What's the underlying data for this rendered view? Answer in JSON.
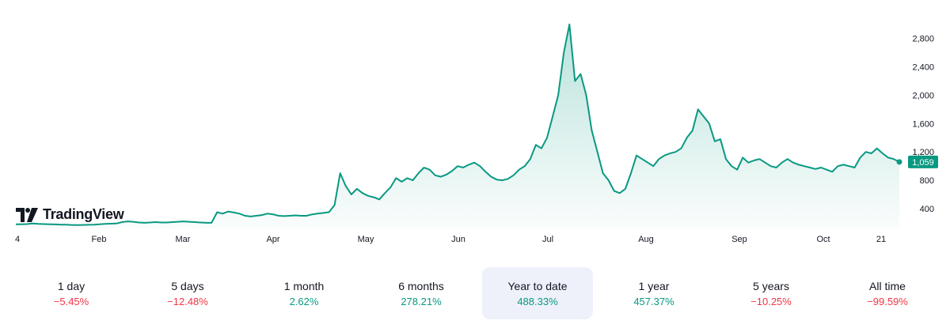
{
  "chart_data": {
    "type": "area",
    "title": "",
    "xlabel": "",
    "ylabel": "",
    "x_ticks": [
      "4",
      "Feb",
      "Mar",
      "Apr",
      "May",
      "Jun",
      "Jul",
      "Aug",
      "Sep",
      "Oct",
      "21"
    ],
    "y_ticks": [
      "400",
      "800",
      "1,200",
      "1,600",
      "2,000",
      "2,400",
      "2,800"
    ],
    "ylim": [
      110,
      3120
    ],
    "grid": false,
    "legend": "none",
    "last_price_label": "1,059",
    "series": [
      {
        "values": [
          180,
          180,
          182,
          190,
          185,
          183,
          180,
          178,
          175,
          173,
          170,
          168,
          170,
          172,
          175,
          180,
          185,
          188,
          190,
          210,
          220,
          215,
          205,
          200,
          205,
          210,
          205,
          205,
          210,
          215,
          220,
          215,
          210,
          205,
          200,
          200,
          350,
          330,
          360,
          345,
          330,
          300,
          290,
          300,
          310,
          330,
          320,
          300,
          295,
          300,
          305,
          300,
          300,
          320,
          330,
          340,
          350,
          450,
          900,
          720,
          600,
          680,
          620,
          580,
          560,
          530,
          620,
          700,
          830,
          780,
          830,
          800,
          900,
          980,
          950,
          870,
          850,
          880,
          930,
          1000,
          980,
          1020,
          1050,
          1000,
          920,
          850,
          810,
          800,
          820,
          870,
          950,
          1000,
          1100,
          1300,
          1250,
          1400,
          1700,
          2000,
          2600,
          3000,
          2200,
          2300,
          2000,
          1500,
          1200,
          900,
          800,
          650,
          620,
          680,
          900,
          1150,
          1100,
          1050,
          1000,
          1100,
          1150,
          1180,
          1200,
          1250,
          1400,
          1500,
          1800,
          1700,
          1600,
          1350,
          1380,
          1100,
          1000,
          950,
          1120,
          1050,
          1080,
          1100,
          1050,
          1000,
          980,
          1050,
          1100,
          1050,
          1020,
          1000,
          980,
          960,
          980,
          950,
          920,
          1000,
          1020,
          1000,
          980,
          1120,
          1200,
          1180,
          1250,
          1180,
          1120,
          1100,
          1059
        ],
        "color": "#089981"
      }
    ]
  },
  "logo": {
    "text": "TradingView"
  },
  "periods": [
    {
      "label": "1 day",
      "value": "−5.45%",
      "trend": "neg"
    },
    {
      "label": "5 days",
      "value": "−12.48%",
      "trend": "neg"
    },
    {
      "label": "1 month",
      "value": "2.62%",
      "trend": "pos"
    },
    {
      "label": "6 months",
      "value": "278.21%",
      "trend": "pos"
    },
    {
      "label": "Year to date",
      "value": "488.33%",
      "trend": "pos",
      "active": true
    },
    {
      "label": "1 year",
      "value": "457.37%",
      "trend": "pos"
    },
    {
      "label": "5 years",
      "value": "−10.25%",
      "trend": "neg"
    },
    {
      "label": "All time",
      "value": "−99.59%",
      "trend": "neg"
    }
  ]
}
